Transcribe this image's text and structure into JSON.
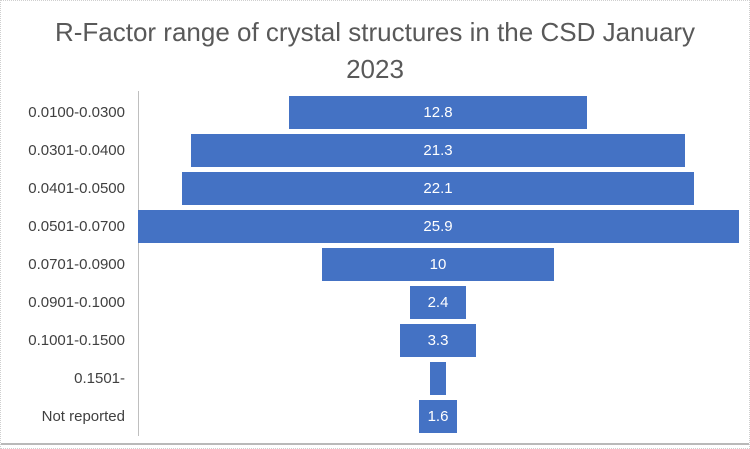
{
  "title": {
    "lines": [
      "R-Factor range of crystal structures in the CSD January",
      "2023"
    ]
  },
  "chart_data": {
    "type": "bar",
    "subtype": "funnel-centered-horizontal",
    "title": "R-Factor range of crystal structures in the CSD January 2023",
    "categories": [
      "0.0100-0.0300",
      "0.0301-0.0400",
      "0.0401-0.0500",
      "0.0501-0.0700",
      "0.0701-0.0900",
      "0.0901-0.1000",
      "0.1001-0.1500",
      "0.1501-",
      "Not reported"
    ],
    "values": [
      12.8,
      21.3,
      22.1,
      25.9,
      10,
      2.4,
      3.3,
      0.7,
      1.6
    ],
    "data_labels": [
      "12.8",
      "21.3",
      "22.1",
      "25.9",
      "10",
      "2.4",
      "3.3",
      "",
      "1.6"
    ],
    "xlabel": "",
    "ylabel": "",
    "value_axis_max": 25.9,
    "legend": "none",
    "grid": false,
    "colors": {
      "bar": "#4472C4",
      "data_label": "#FFFFFF",
      "title": "#595959",
      "category_label": "#404040",
      "axis_line": "#BFBFBF",
      "background": "#FFFFFF",
      "border": "#CFCFCF"
    }
  }
}
